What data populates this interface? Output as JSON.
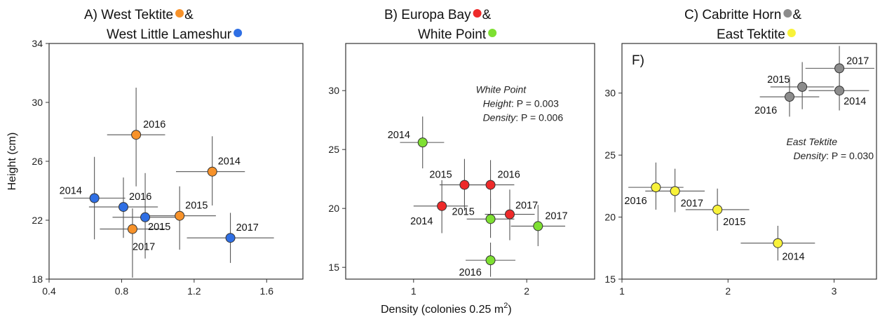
{
  "xlabel": "Density (colonies 0.25 m",
  "xlabel_sup": "2",
  "xlabel_end": ")",
  "chart_data": [
    {
      "type": "scatter",
      "title_line1": "A) West Tektite",
      "title_line2": "West Little Lameshur",
      "title_amp": "&",
      "ylabel": "Height (cm)",
      "xlim": [
        0.4,
        1.8
      ],
      "ylim": [
        18,
        34
      ],
      "xticks": [
        0.4,
        0.8,
        1.2,
        1.6
      ],
      "yticks": [
        18,
        22,
        26,
        30,
        34
      ],
      "panel_letter": "",
      "annotation": null,
      "series": [
        {
          "name": "West Tektite",
          "color": "#f7922a",
          "points": [
            {
              "year": "2016",
              "x": 0.88,
              "y": 27.8,
              "xerr": [
                0.72,
                1.04
              ],
              "yerr": [
                24.3,
                31.0
              ],
              "label_dx": 10,
              "label_dy": -10
            },
            {
              "year": "2014",
              "x": 1.3,
              "y": 25.3,
              "xerr": [
                1.1,
                1.48
              ],
              "yerr": [
                23.0,
                27.7
              ],
              "label_dx": 8,
              "label_dy": -10
            },
            {
              "year": "2015",
              "x": 1.12,
              "y": 22.3,
              "xerr": [
                0.92,
                1.32
              ],
              "yerr": [
                20.0,
                24.3
              ],
              "label_dx": 8,
              "label_dy": -10
            },
            {
              "year": "2017",
              "x": 0.86,
              "y": 21.4,
              "xerr": [
                0.68,
                1.04
              ],
              "yerr": [
                18.1,
                22.8
              ],
              "label_dx": 0,
              "label_dy": 30
            }
          ]
        },
        {
          "name": "West Little Lameshur",
          "color": "#2f6fe4",
          "points": [
            {
              "year": "2014",
              "x": 0.65,
              "y": 23.5,
              "xerr": [
                0.48,
                0.82
              ],
              "yerr": [
                20.7,
                26.3
              ],
              "label_dx": -50,
              "label_dy": -6
            },
            {
              "year": "2016",
              "x": 0.81,
              "y": 22.9,
              "xerr": [
                0.62,
                1.0
              ],
              "yerr": [
                20.8,
                24.9
              ],
              "label_dx": 8,
              "label_dy": -10
            },
            {
              "year": "2015",
              "x": 0.93,
              "y": 22.2,
              "xerr": [
                0.75,
                1.11
              ],
              "yerr": [
                19.4,
                25.2
              ],
              "label_dx": 4,
              "label_dy": 18
            },
            {
              "year": "2017",
              "x": 1.4,
              "y": 20.8,
              "xerr": [
                1.16,
                1.64
              ],
              "yerr": [
                19.1,
                22.5
              ],
              "label_dx": 8,
              "label_dy": -10
            }
          ]
        }
      ]
    },
    {
      "type": "scatter",
      "title_line1": "B) Europa Bay",
      "title_line2": "White Point",
      "title_amp": "&",
      "ylabel": "",
      "xlim": [
        0.4,
        2.6
      ],
      "ylim": [
        14,
        34
      ],
      "xticks": [
        1,
        2
      ],
      "yticks": [
        15,
        20,
        25,
        30
      ],
      "panel_letter": "",
      "annotation": {
        "line1": "White Point",
        "line2_italic": "Height",
        "line2_rest": ": P = 0.003",
        "line3_italic": "Density",
        "line3_rest": ": P = 0.006",
        "x": 1.55,
        "y": 29.8
      },
      "series": [
        {
          "name": "Europa Bay",
          "color": "#ee2a2a",
          "points": [
            {
              "year": "2015",
              "x": 1.45,
              "y": 22.0,
              "xerr": [
                1.23,
                1.67
              ],
              "yerr": [
                19.8,
                24.2
              ],
              "label_dx": -50,
              "label_dy": -10
            },
            {
              "year": "2016",
              "x": 1.68,
              "y": 22.0,
              "xerr": [
                1.47,
                1.89
              ],
              "yerr": [
                20.0,
                24.1
              ],
              "label_dx": 10,
              "label_dy": -10
            },
            {
              "year": "2014",
              "x": 1.25,
              "y": 20.2,
              "xerr": [
                1.0,
                1.48
              ],
              "yerr": [
                17.9,
                22.4
              ],
              "label_dx": -45,
              "label_dy": 26
            },
            {
              "year": "2017",
              "x": 1.85,
              "y": 19.5,
              "xerr": [
                1.63,
                2.07
              ],
              "yerr": [
                17.3,
                21.6
              ],
              "label_dx": 8,
              "label_dy": -8
            }
          ]
        },
        {
          "name": "White Point",
          "color": "#7ee032",
          "points": [
            {
              "year": "2014",
              "x": 1.08,
              "y": 25.6,
              "xerr": [
                0.88,
                1.27
              ],
              "yerr": [
                23.4,
                27.8
              ],
              "label_dx": -50,
              "label_dy": -6
            },
            {
              "year": "2015",
              "x": 1.68,
              "y": 19.1,
              "xerr": [
                1.47,
                1.89
              ],
              "yerr": [
                17.5,
                20.8
              ],
              "label_dx": -55,
              "label_dy": -6
            },
            {
              "year": "2017",
              "x": 2.1,
              "y": 18.5,
              "xerr": [
                1.86,
                2.34
              ],
              "yerr": [
                16.8,
                20.3
              ],
              "label_dx": 10,
              "label_dy": -10
            },
            {
              "year": "2016",
              "x": 1.68,
              "y": 15.6,
              "xerr": [
                1.46,
                1.9
              ],
              "yerr": [
                14.2,
                17.1
              ],
              "label_dx": -45,
              "label_dy": 22
            }
          ]
        }
      ]
    },
    {
      "type": "scatter",
      "title_line1": "C) Cabritte Horn",
      "title_line2": "East Tektite",
      "title_amp": "&",
      "ylabel": "",
      "xlim": [
        1,
        3.4
      ],
      "ylim": [
        15,
        34
      ],
      "xticks": [
        1,
        2,
        3
      ],
      "yticks": [
        15,
        20,
        25,
        30
      ],
      "panel_letter": "F)",
      "annotation": {
        "line1": "East Tektite",
        "line2_italic": "Density",
        "line2_rest": ": P = 0.030",
        "line3_italic": "",
        "line3_rest": "",
        "x": 2.55,
        "y": 25.8
      },
      "series": [
        {
          "name": "Cabritte Horn",
          "color": "#8c8c8c",
          "points": [
            {
              "year": "2017",
              "x": 3.05,
              "y": 32.0,
              "xerr": [
                2.73,
                3.38
              ],
              "yerr": [
                30.2,
                33.8
              ],
              "label_dx": 10,
              "label_dy": -6
            },
            {
              "year": "2015",
              "x": 2.7,
              "y": 30.5,
              "xerr": [
                2.4,
                3.0
              ],
              "yerr": [
                28.7,
                32.5
              ],
              "label_dx": -50,
              "label_dy": -6
            },
            {
              "year": "2016",
              "x": 2.58,
              "y": 29.7,
              "xerr": [
                2.3,
                2.86
              ],
              "yerr": [
                28.1,
                31.3
              ],
              "label_dx": -50,
              "label_dy": 24
            },
            {
              "year": "2014",
              "x": 3.05,
              "y": 30.2,
              "xerr": [
                2.76,
                3.33
              ],
              "yerr": [
                28.6,
                31.9
              ],
              "label_dx": 6,
              "label_dy": 20
            }
          ]
        },
        {
          "name": "East Tektite",
          "color": "#f8f23a",
          "points": [
            {
              "year": "2016",
              "x": 1.32,
              "y": 22.4,
              "xerr": [
                1.06,
                1.58
              ],
              "yerr": [
                20.6,
                24.4
              ],
              "label_dx": -45,
              "label_dy": 24
            },
            {
              "year": "2017",
              "x": 1.5,
              "y": 22.1,
              "xerr": [
                1.22,
                1.78
              ],
              "yerr": [
                20.4,
                23.9
              ],
              "label_dx": 8,
              "label_dy": 22
            },
            {
              "year": "2015",
              "x": 1.9,
              "y": 20.6,
              "xerr": [
                1.6,
                2.2
              ],
              "yerr": [
                18.9,
                22.3
              ],
              "label_dx": 8,
              "label_dy": 22
            },
            {
              "year": "2014",
              "x": 2.47,
              "y": 17.9,
              "xerr": [
                2.12,
                2.82
              ],
              "yerr": [
                16.5,
                19.3
              ],
              "label_dx": 6,
              "label_dy": 24
            }
          ]
        }
      ]
    }
  ]
}
